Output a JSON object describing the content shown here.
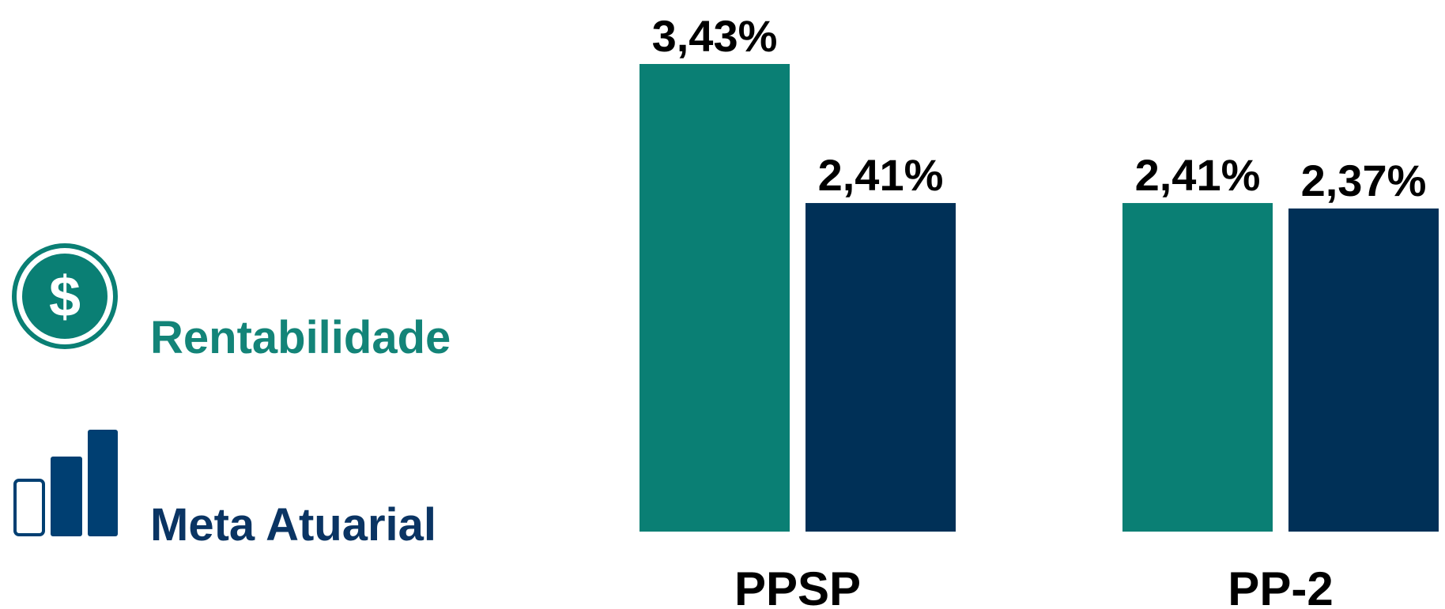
{
  "chart_data": {
    "type": "bar",
    "categories": [
      "PPSP",
      "PP-2"
    ],
    "series": [
      {
        "name": "Rentabilidade",
        "color": "#0a7f74",
        "values": [
          3.43,
          2.41
        ],
        "value_labels": [
          "3,43%",
          "2,41%"
        ]
      },
      {
        "name": "Meta Atuarial",
        "color": "#003057",
        "values": [
          2.41,
          2.37
        ],
        "value_labels": [
          "2,41%",
          "2,37%"
        ]
      }
    ]
  }
}
